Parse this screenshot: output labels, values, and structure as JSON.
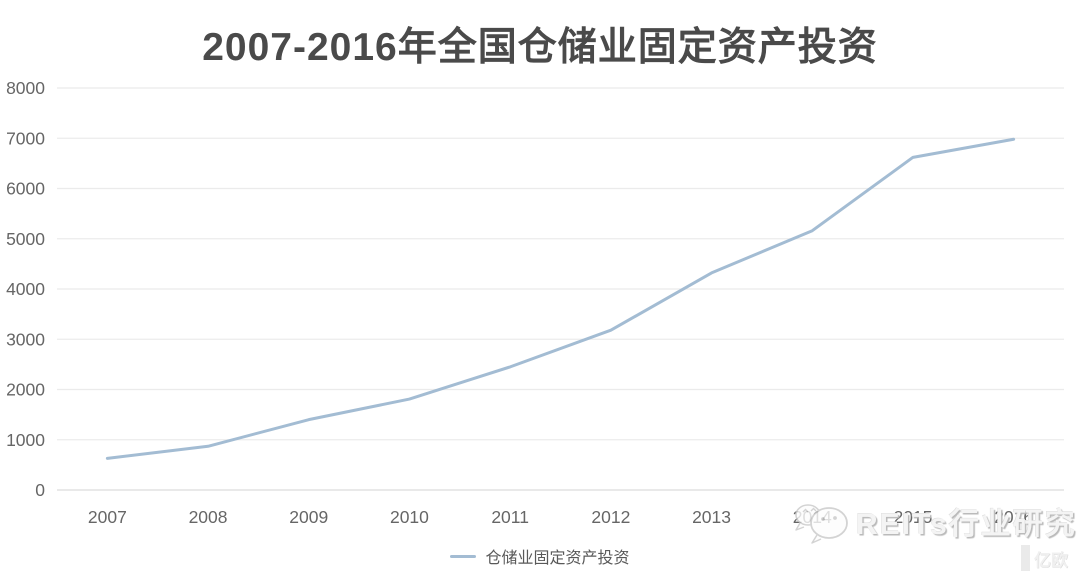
{
  "header": {
    "title": "2007-2016年全国仓储业固定资产投资"
  },
  "chart_data": {
    "type": "line",
    "title": "2007-2016年全国仓储业固定资产投资",
    "categories": [
      "2007",
      "2008",
      "2009",
      "2010",
      "2011",
      "2012",
      "2013",
      "2014",
      "2015",
      "2016"
    ],
    "series": [
      {
        "name": "仓储业固定资产投资",
        "values": [
          630,
          870,
          1400,
          1810,
          2450,
          3180,
          4320,
          5160,
          6620,
          6980
        ]
      }
    ],
    "xlabel": "",
    "ylabel": "",
    "ylim": [
      0,
      8000
    ],
    "ytick_step": 1000,
    "yticks": [
      0,
      1000,
      2000,
      3000,
      4000,
      5000,
      6000,
      7000,
      8000
    ],
    "grid": "horizontal",
    "legend_position": "bottom-center"
  },
  "legend": {
    "label": "仓储业固定资产投资"
  },
  "watermark": {
    "icon": "wechat-icon",
    "text": "REITs行业研究",
    "corner_text": "亿欧"
  },
  "colors": {
    "line": "#a3bcd3",
    "grid": "#ebebeb",
    "axis": "#dcdcdc",
    "title": "#4a4a4a",
    "tick": "#666666",
    "legend_text": "#595959"
  }
}
